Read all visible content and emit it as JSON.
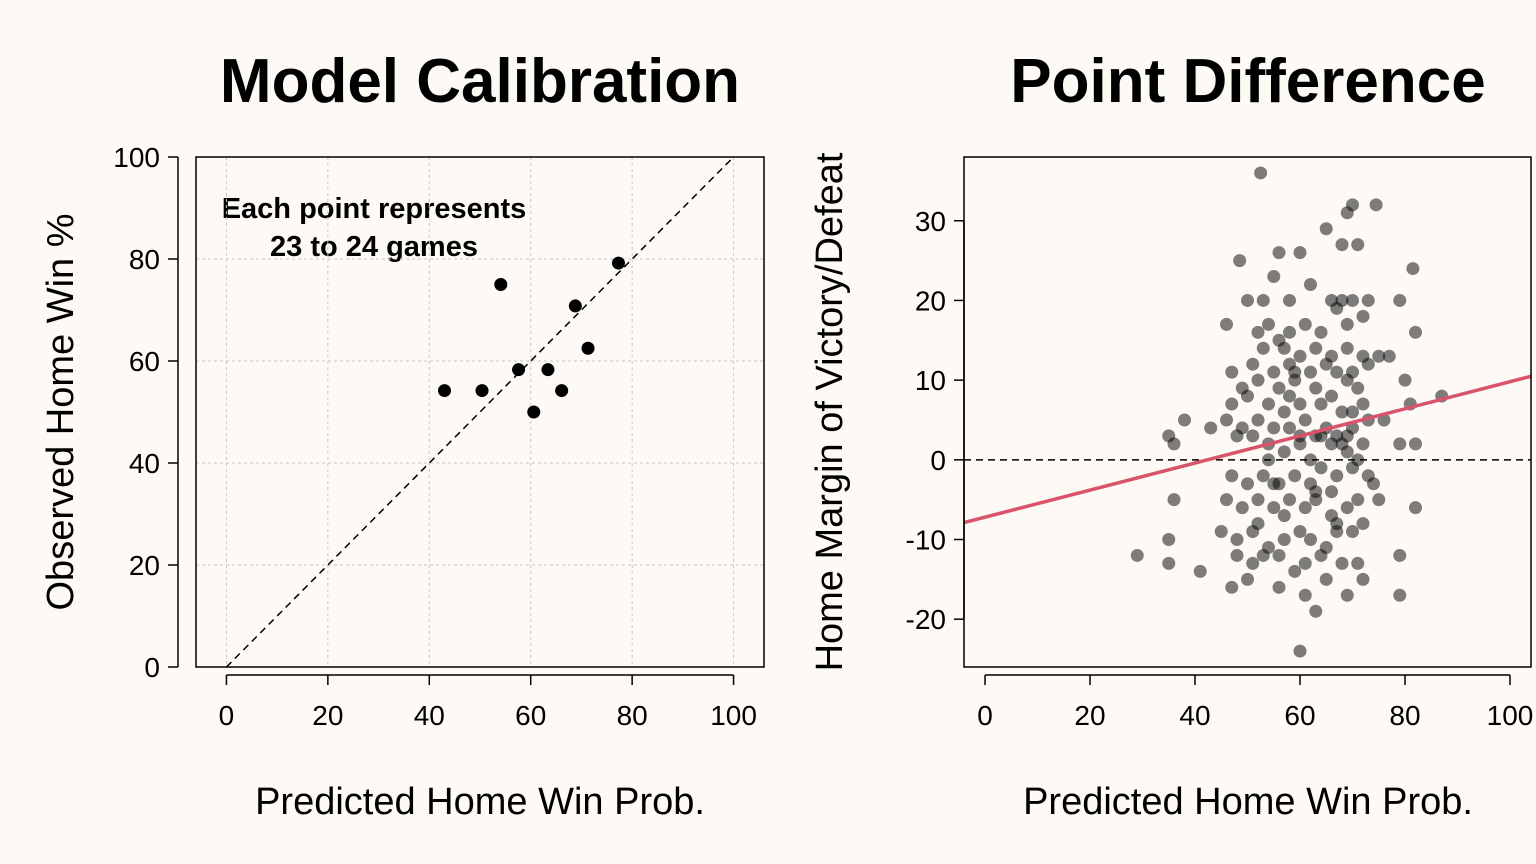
{
  "chart_data": [
    {
      "type": "scatter",
      "title": "Model Calibration",
      "xlabel": "Predicted Home Win Prob.",
      "ylabel": "Observed Home Win %",
      "xlim": [
        -6,
        106
      ],
      "ylim": [
        0,
        100
      ],
      "xticks": [
        0,
        20,
        40,
        60,
        80,
        100
      ],
      "yticks": [
        0,
        20,
        40,
        60,
        80,
        100
      ],
      "grid": true,
      "annotation": [
        "Each point represents",
        "23 to 24 games"
      ],
      "reference_line": {
        "type": "identity",
        "style": "dashed"
      },
      "points": [
        {
          "x": 43.0,
          "y": 54.2
        },
        {
          "x": 50.4,
          "y": 54.2
        },
        {
          "x": 54.1,
          "y": 75.0
        },
        {
          "x": 57.6,
          "y": 58.3
        },
        {
          "x": 60.6,
          "y": 50.0
        },
        {
          "x": 63.4,
          "y": 58.3
        },
        {
          "x": 66.1,
          "y": 54.2
        },
        {
          "x": 68.8,
          "y": 70.8
        },
        {
          "x": 71.3,
          "y": 62.5
        },
        {
          "x": 77.3,
          "y": 79.2
        }
      ]
    },
    {
      "type": "scatter",
      "title": "Point Difference",
      "xlabel": "Predicted Home Win Prob.",
      "ylabel": "Home Margin of Victory/Defeat",
      "xlim": [
        -4,
        104
      ],
      "ylim": [
        -26,
        38
      ],
      "xticks": [
        0,
        20,
        40,
        60,
        80,
        100
      ],
      "yticks": [
        -20,
        -10,
        0,
        10,
        20,
        30
      ],
      "grid": false,
      "zero_line": {
        "y": 0,
        "style": "dashed"
      },
      "trend_line": {
        "intercept": -7.2,
        "slope": 0.17,
        "color": "#d9536a"
      },
      "point_color": "#000000",
      "points": [
        [
          52.5,
          36
        ],
        [
          69,
          31
        ],
        [
          70,
          32
        ],
        [
          74.5,
          32
        ],
        [
          65,
          29
        ],
        [
          68,
          27
        ],
        [
          71,
          27
        ],
        [
          48.5,
          25
        ],
        [
          55,
          23
        ],
        [
          81.5,
          24
        ],
        [
          56,
          26
        ],
        [
          60,
          26
        ],
        [
          62,
          22
        ],
        [
          50,
          20
        ],
        [
          53,
          20
        ],
        [
          58,
          20
        ],
        [
          66,
          20
        ],
        [
          68,
          20
        ],
        [
          70,
          20
        ],
        [
          73,
          20
        ],
        [
          79,
          20
        ],
        [
          46,
          17
        ],
        [
          52,
          16
        ],
        [
          54,
          17
        ],
        [
          56,
          15
        ],
        [
          58,
          16
        ],
        [
          61,
          17
        ],
        [
          64,
          16
        ],
        [
          67,
          19
        ],
        [
          69,
          17
        ],
        [
          72,
          18
        ],
        [
          82,
          16
        ],
        [
          53,
          14
        ],
        [
          57,
          14
        ],
        [
          60,
          13
        ],
        [
          63,
          14
        ],
        [
          66,
          13
        ],
        [
          69,
          14
        ],
        [
          72,
          13
        ],
        [
          75,
          13
        ],
        [
          47,
          11
        ],
        [
          51,
          12
        ],
        [
          55,
          11
        ],
        [
          58,
          12
        ],
        [
          62,
          11
        ],
        [
          65,
          12
        ],
        [
          67,
          11
        ],
        [
          70,
          11
        ],
        [
          73,
          12
        ],
        [
          77,
          13
        ],
        [
          49,
          9
        ],
        [
          52,
          10
        ],
        [
          56,
          9
        ],
        [
          59,
          10
        ],
        [
          63,
          9
        ],
        [
          66,
          8
        ],
        [
          69,
          10
        ],
        [
          71,
          9
        ],
        [
          80,
          10
        ],
        [
          47,
          7
        ],
        [
          50,
          8
        ],
        [
          54,
          7
        ],
        [
          57,
          6
        ],
        [
          60,
          7
        ],
        [
          64,
          7
        ],
        [
          68,
          6
        ],
        [
          72,
          7
        ],
        [
          81,
          7
        ],
        [
          87,
          8
        ],
        [
          46,
          5
        ],
        [
          49,
          4
        ],
        [
          52,
          5
        ],
        [
          55,
          4
        ],
        [
          58,
          4
        ],
        [
          61,
          5
        ],
        [
          65,
          4
        ],
        [
          67,
          3
        ],
        [
          70,
          4
        ],
        [
          73,
          5
        ],
        [
          76,
          5
        ],
        [
          35,
          3
        ],
        [
          38,
          5
        ],
        [
          36,
          2
        ],
        [
          43,
          4
        ],
        [
          48,
          3
        ],
        [
          51,
          3
        ],
        [
          54,
          2
        ],
        [
          57,
          1
        ],
        [
          60,
          2
        ],
        [
          63,
          3
        ],
        [
          66,
          2
        ],
        [
          69,
          1
        ],
        [
          72,
          2
        ],
        [
          79,
          2
        ],
        [
          82,
          2
        ],
        [
          47,
          -2
        ],
        [
          50,
          -3
        ],
        [
          53,
          -2
        ],
        [
          56,
          -3
        ],
        [
          59,
          -2
        ],
        [
          62,
          -3
        ],
        [
          64,
          -1
        ],
        [
          67,
          -2
        ],
        [
          70,
          -1
        ],
        [
          73,
          -2
        ],
        [
          46,
          -5
        ],
        [
          49,
          -6
        ],
        [
          52,
          -5
        ],
        [
          55,
          -6
        ],
        [
          58,
          -5
        ],
        [
          61,
          -6
        ],
        [
          63,
          -5
        ],
        [
          66,
          -4
        ],
        [
          69,
          -6
        ],
        [
          71,
          -5
        ],
        [
          75,
          -5
        ],
        [
          82,
          -6
        ],
        [
          36,
          -5
        ],
        [
          45,
          -9
        ],
        [
          48,
          -10
        ],
        [
          51,
          -9
        ],
        [
          54,
          -11
        ],
        [
          57,
          -10
        ],
        [
          60,
          -9
        ],
        [
          62,
          -10
        ],
        [
          65,
          -11
        ],
        [
          67,
          -8
        ],
        [
          70,
          -9
        ],
        [
          72,
          -8
        ],
        [
          29,
          -12
        ],
        [
          35,
          -10
        ],
        [
          48,
          -12
        ],
        [
          51,
          -13
        ],
        [
          53,
          -12
        ],
        [
          56,
          -12
        ],
        [
          59,
          -14
        ],
        [
          61,
          -13
        ],
        [
          64,
          -12
        ],
        [
          68,
          -13
        ],
        [
          71,
          -13
        ],
        [
          79,
          -12
        ],
        [
          35,
          -13
        ],
        [
          41,
          -14
        ],
        [
          47,
          -16
        ],
        [
          50,
          -15
        ],
        [
          56,
          -16
        ],
        [
          61,
          -17
        ],
        [
          65,
          -15
        ],
        [
          69,
          -17
        ],
        [
          72,
          -15
        ],
        [
          79,
          -17
        ],
        [
          63,
          -19
        ],
        [
          60,
          -24
        ],
        [
          55,
          -3
        ],
        [
          58,
          8
        ],
        [
          62,
          0
        ],
        [
          66,
          -7
        ],
        [
          68,
          2
        ],
        [
          70,
          6
        ],
        [
          74,
          -3
        ],
        [
          54,
          0
        ],
        [
          57,
          -7
        ],
        [
          64,
          3
        ],
        [
          67,
          -9
        ],
        [
          71,
          0
        ],
        [
          60,
          3
        ],
        [
          52,
          -8
        ],
        [
          59,
          11
        ],
        [
          63,
          -4
        ],
        [
          69,
          3
        ]
      ]
    }
  ]
}
